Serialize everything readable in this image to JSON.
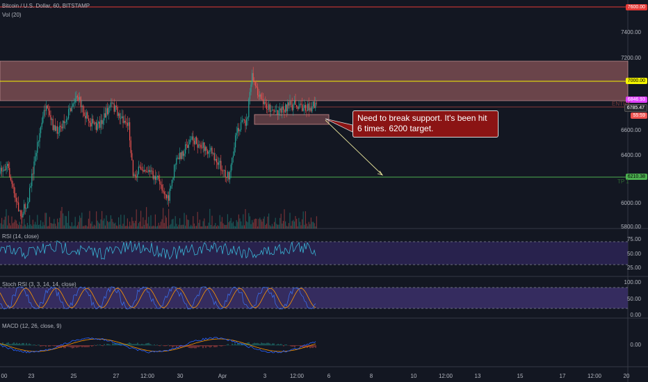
{
  "header": {
    "symbol_title": "Bitcoin / U.S. Dollar, 60, BITSTAMP",
    "vol_label": "Vol (20)"
  },
  "price_axis": {
    "ticks": [
      "7400.00",
      "7200.00",
      "6600.00",
      "6400.00",
      "6000.00",
      "5800.00"
    ],
    "tag_top": "7600.00",
    "tag_resistance": "7000.00",
    "tag_current": "6846.93",
    "tag_entry": "6785.47",
    "tag_time": "55:59",
    "tag_target": "6210.38",
    "entry_label": "ENTRY",
    "tp_label": "TP 1"
  },
  "callout": {
    "text": "Need to break support. It's been hit 6 times. 6200 target."
  },
  "rsi": {
    "title": "RSI (14, close)",
    "ticks": [
      "75.00",
      "50.00",
      "25.00"
    ]
  },
  "stoch": {
    "title": "Stoch RSI (3, 3, 14, 14, close)",
    "ticks": [
      "100.00",
      "50.00",
      "0.00"
    ]
  },
  "macd": {
    "title": "MACD (12, 26, close, 9)",
    "ticks": [
      "0.00"
    ]
  },
  "time_axis": {
    "labels": [
      "00",
      "23",
      "25",
      "27",
      "12:00",
      "30",
      "Apr",
      "3",
      "12:00",
      "6",
      "8",
      "10",
      "12:00",
      "13",
      "15",
      "17",
      "12:00",
      "20"
    ]
  },
  "colors": {
    "background": "#131722",
    "bullish": "#26a69a",
    "bearish": "#ef5350",
    "resistance_zone": "#b2696b",
    "resistance_line": "#f5f500",
    "support_line": "#4caf50",
    "top_line": "#e53935",
    "rsi_line": "#3ab6d6",
    "stoch_k": "#3a6de8",
    "stoch_d": "#ff9800",
    "macd_line": "#2962ff",
    "signal_line": "#ff9800",
    "oscillator_band": "#3a2f66",
    "callout_bg": "#8b1414"
  }
}
